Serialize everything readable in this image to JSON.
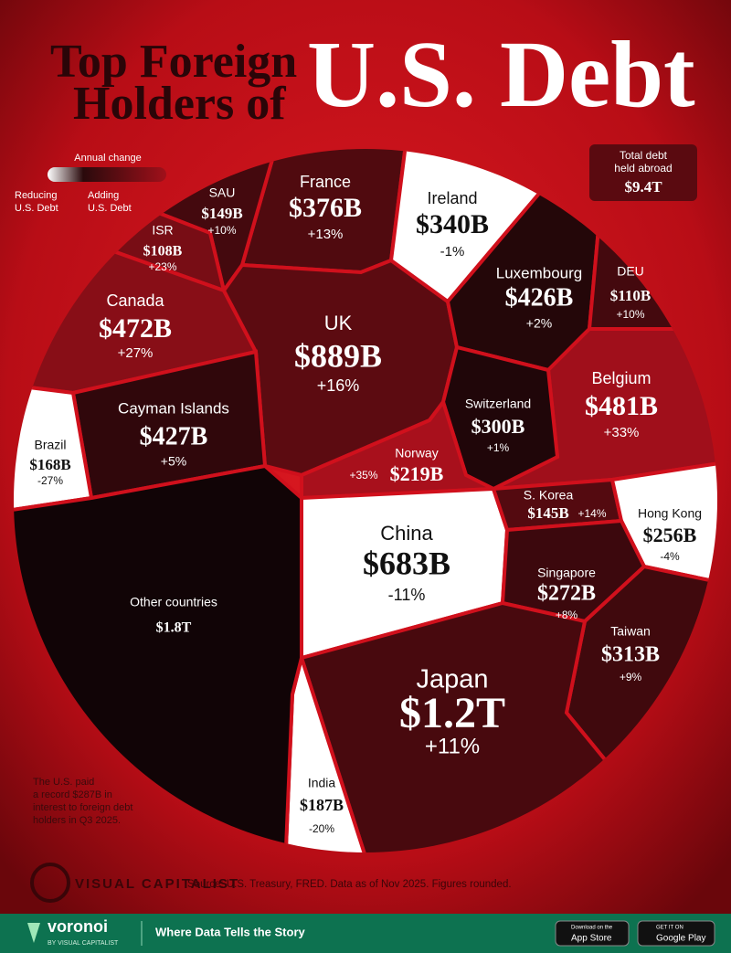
{
  "chart_data": {
    "type": "voronoi",
    "title_lines": [
      "Top Foreign",
      "Holders of"
    ],
    "title_emphasis": "U.S. Debt",
    "legend_title": "Annual change",
    "legend_low": [
      "Reducing",
      "U.S. Debt"
    ],
    "legend_high": [
      "Adding",
      "U.S. Debt"
    ],
    "total_title": [
      "Total debt",
      "held abroad"
    ],
    "total_label": "$9.4T",
    "categories": [
      "France",
      "SAU",
      "ISR",
      "Canada",
      "UK",
      "Ireland",
      "Luxembourg",
      "DEU",
      "Cayman Islands",
      "Brazil",
      "Belgium",
      "Switzerland",
      "Norway",
      "China",
      "S. Korea",
      "Hong Kong",
      "Singapore",
      "Taiwan",
      "Japan",
      "India",
      "Other countries"
    ],
    "values": [
      376,
      149,
      108,
      472,
      889,
      340,
      426,
      110,
      427,
      168,
      481,
      300,
      219,
      683,
      145,
      256,
      272,
      313,
      1200,
      187,
      1800
    ],
    "value_labels": [
      "$376B",
      "$149B",
      "$108B",
      "$472B",
      "$889B",
      "$340B",
      "$426B",
      "$110B",
      "$427B",
      "$168B",
      "$481B",
      "$300B",
      "$219B",
      "$683B",
      "$145B",
      "$256B",
      "$272B",
      "$313B",
      "$1.2T",
      "$187B",
      "$1.8T"
    ],
    "changes": [
      13,
      10,
      23,
      27,
      16,
      -1,
      2,
      10,
      5,
      -27,
      33,
      1,
      35,
      -11,
      14,
      -4,
      8,
      9,
      11,
      -20,
      null
    ],
    "change_labels": [
      "+13%",
      "+10%",
      "+23%",
      "+27%",
      "+16%",
      "-1%",
      "+2%",
      "+10%",
      "+5%",
      "-27%",
      "+33%",
      "+1%",
      "+35%",
      "-11%",
      "+14%",
      "-4%",
      "+8%",
      "+9%",
      "+11%",
      "-20%",
      null
    ],
    "note_lines": [
      "The U.S. paid",
      "a record $287B in",
      "interest to foreign debt",
      "holders in Q3 2025."
    ],
    "brand": "VISUAL CAPITALIST",
    "source": "Source: U.S. Treasury, FRED. Data as of Nov 2025. Figures rounded."
  },
  "footer": {
    "logo": "voronoi",
    "logo_sub": "BY VISUAL CAPITALIST",
    "tagline": "Where Data Tells the Story",
    "app_store": [
      "Download on the",
      "App Store"
    ],
    "google_play": [
      "GET IT ON",
      "Google Play"
    ]
  }
}
